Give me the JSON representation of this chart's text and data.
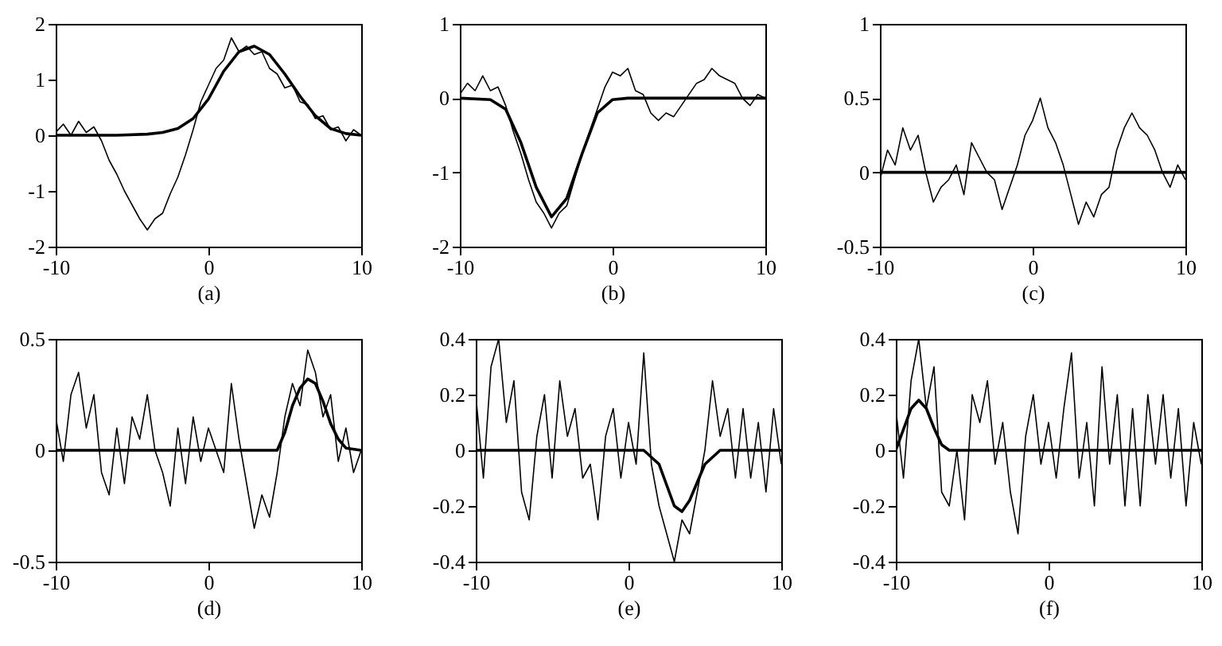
{
  "chart_data": [
    {
      "type": "line",
      "xlabel": "(a)",
      "xlim": [
        -10,
        10
      ],
      "xticks": [
        -10,
        0,
        10
      ],
      "ylim": [
        -2,
        2
      ],
      "yticks": [
        -2,
        -1,
        0,
        1,
        2
      ],
      "x": [
        -10,
        -9.5,
        -9,
        -8.5,
        -8,
        -7.5,
        -7,
        -6.5,
        -6,
        -5.5,
        -5,
        -4.5,
        -4,
        -3.5,
        -3,
        -2.5,
        -2,
        -1.5,
        -1,
        -0.5,
        0,
        0.5,
        1,
        1.5,
        2,
        2.5,
        3,
        3.5,
        4,
        4.5,
        5,
        5.5,
        6,
        6.5,
        7,
        7.5,
        8,
        8.5,
        9,
        9.5,
        10
      ],
      "series": [
        {
          "color": "#000000",
          "values": [
            0.05,
            0.2,
            0.0,
            0.25,
            0.05,
            0.15,
            -0.1,
            -0.45,
            -0.7,
            -1.0,
            -1.25,
            -1.5,
            -1.7,
            -1.5,
            -1.4,
            -1.05,
            -0.75,
            -0.35,
            0.1,
            0.6,
            0.9,
            1.2,
            1.35,
            1.75,
            1.5,
            1.6,
            1.45,
            1.5,
            1.2,
            1.1,
            0.85,
            0.9,
            0.6,
            0.55,
            0.3,
            0.35,
            0.1,
            0.15,
            -0.1,
            0.1,
            0.0
          ]
        },
        {
          "color": "#000000",
          "x": [
            -10,
            -6,
            -4,
            -3,
            -2,
            -1,
            0,
            1,
            2,
            3,
            4,
            5,
            6,
            7,
            8,
            9,
            10
          ],
          "values": [
            0,
            0,
            0.02,
            0.05,
            0.12,
            0.3,
            0.65,
            1.15,
            1.5,
            1.6,
            1.45,
            1.1,
            0.7,
            0.35,
            0.12,
            0.03,
            0
          ]
        }
      ]
    },
    {
      "type": "line",
      "xlabel": "(b)",
      "xlim": [
        -10,
        10
      ],
      "xticks": [
        -10,
        0,
        10
      ],
      "ylim": [
        -2,
        1
      ],
      "yticks": [
        -2,
        -1,
        0,
        1
      ],
      "x": [
        -10,
        -9.5,
        -9,
        -8.5,
        -8,
        -7.5,
        -7,
        -6.5,
        -6,
        -5.5,
        -5,
        -4.5,
        -4,
        -3.5,
        -3,
        -2.5,
        -2,
        -1.5,
        -1,
        -0.5,
        0,
        0.5,
        1,
        1.5,
        2,
        2.5,
        3,
        3.5,
        4,
        4.5,
        5,
        5.5,
        6,
        6.5,
        7,
        7.5,
        8,
        8.5,
        9,
        9.5,
        10
      ],
      "series": [
        {
          "color": "#000000",
          "values": [
            0.05,
            0.2,
            0.1,
            0.3,
            0.1,
            0.15,
            -0.1,
            -0.45,
            -0.75,
            -1.1,
            -1.4,
            -1.55,
            -1.75,
            -1.55,
            -1.45,
            -1.1,
            -0.75,
            -0.45,
            -0.15,
            0.15,
            0.35,
            0.3,
            0.4,
            0.1,
            0.05,
            -0.2,
            -0.3,
            -0.2,
            -0.25,
            -0.1,
            0.05,
            0.2,
            0.25,
            0.4,
            0.3,
            0.25,
            0.2,
            0.0,
            -0.1,
            0.05,
            0.0
          ]
        },
        {
          "color": "#000000",
          "x": [
            -10,
            -8,
            -7,
            -6,
            -5,
            -4,
            -3,
            -2,
            -1,
            0,
            1,
            10
          ],
          "values": [
            0,
            -0.02,
            -0.15,
            -0.6,
            -1.2,
            -1.6,
            -1.35,
            -0.75,
            -0.2,
            -0.02,
            0,
            0
          ]
        }
      ]
    },
    {
      "type": "line",
      "xlabel": "(c)",
      "xlim": [
        -10,
        10
      ],
      "xticks": [
        -10,
        0,
        10
      ],
      "ylim": [
        -0.5,
        1
      ],
      "yticks": [
        -0.5,
        0,
        0.5,
        1
      ],
      "x": [
        -10,
        -9.5,
        -9,
        -8.5,
        -8,
        -7.5,
        -7,
        -6.5,
        -6,
        -5.5,
        -5,
        -4.5,
        -4,
        -3.5,
        -3,
        -2.5,
        -2,
        -1.5,
        -1,
        -0.5,
        0,
        0.5,
        1,
        1.5,
        2,
        2.5,
        3,
        3.5,
        4,
        4.5,
        5,
        5.5,
        6,
        6.5,
        7,
        7.5,
        8,
        8.5,
        9,
        9.5,
        10
      ],
      "series": [
        {
          "color": "#000000",
          "values": [
            -0.05,
            0.15,
            0.05,
            0.3,
            0.15,
            0.25,
            0.0,
            -0.2,
            -0.1,
            -0.05,
            0.05,
            -0.15,
            0.2,
            0.1,
            0.0,
            -0.05,
            -0.25,
            -0.1,
            0.05,
            0.25,
            0.35,
            0.5,
            0.3,
            0.2,
            0.05,
            -0.15,
            -0.35,
            -0.2,
            -0.3,
            -0.15,
            -0.1,
            0.15,
            0.3,
            0.4,
            0.3,
            0.25,
            0.15,
            0.0,
            -0.1,
            0.05,
            -0.05
          ]
        },
        {
          "color": "#000000",
          "x": [
            -10,
            10
          ],
          "values": [
            0,
            0
          ]
        }
      ]
    },
    {
      "type": "line",
      "xlabel": "(d)",
      "xlim": [
        -10,
        10
      ],
      "xticks": [
        -10,
        0,
        10
      ],
      "ylim": [
        -0.5,
        0.5
      ],
      "yticks": [
        -0.5,
        0,
        0.5
      ],
      "x": [
        -10,
        -9.5,
        -9,
        -8.5,
        -8,
        -7.5,
        -7,
        -6.5,
        -6,
        -5.5,
        -5,
        -4.5,
        -4,
        -3.5,
        -3,
        -2.5,
        -2,
        -1.5,
        -1,
        -0.5,
        0,
        0.5,
        1,
        1.5,
        2,
        2.5,
        3,
        3.5,
        4,
        4.5,
        5,
        5.5,
        6,
        6.5,
        7,
        7.5,
        8,
        8.5,
        9,
        9.5,
        10
      ],
      "series": [
        {
          "color": "#000000",
          "values": [
            0.15,
            -0.05,
            0.25,
            0.35,
            0.1,
            0.25,
            -0.1,
            -0.2,
            0.1,
            -0.15,
            0.15,
            0.05,
            0.25,
            0.0,
            -0.1,
            -0.25,
            0.1,
            -0.15,
            0.15,
            -0.05,
            0.1,
            0.0,
            -0.1,
            0.3,
            0.05,
            -0.15,
            -0.35,
            -0.2,
            -0.3,
            -0.1,
            0.15,
            0.3,
            0.2,
            0.45,
            0.35,
            0.15,
            0.25,
            -0.05,
            0.1,
            -0.1,
            0.0
          ]
        },
        {
          "color": "#000000",
          "x": [
            -10,
            4.5,
            5,
            5.5,
            6,
            6.5,
            7,
            7.5,
            8,
            8.5,
            9,
            10
          ],
          "values": [
            0,
            0,
            0.08,
            0.2,
            0.28,
            0.32,
            0.3,
            0.22,
            0.12,
            0.05,
            0.01,
            0
          ]
        }
      ]
    },
    {
      "type": "line",
      "xlabel": "(e)",
      "xlim": [
        -10,
        10
      ],
      "xticks": [
        -10,
        0,
        10
      ],
      "ylim": [
        -0.4,
        0.4
      ],
      "yticks": [
        -0.4,
        -0.2,
        0,
        0.2,
        0.4
      ],
      "x": [
        -10,
        -9.5,
        -9,
        -8.5,
        -8,
        -7.5,
        -7,
        -6.5,
        -6,
        -5.5,
        -5,
        -4.5,
        -4,
        -3.5,
        -3,
        -2.5,
        -2,
        -1.5,
        -1,
        -0.5,
        0,
        0.5,
        1,
        1.5,
        2,
        2.5,
        3,
        3.5,
        4,
        4.5,
        5,
        5.5,
        6,
        6.5,
        7,
        7.5,
        8,
        8.5,
        9,
        9.5,
        10
      ],
      "series": [
        {
          "color": "#000000",
          "values": [
            0.2,
            -0.1,
            0.3,
            0.4,
            0.1,
            0.25,
            -0.15,
            -0.25,
            0.05,
            0.2,
            -0.1,
            0.25,
            0.05,
            0.15,
            -0.1,
            -0.05,
            -0.25,
            0.05,
            0.15,
            -0.1,
            0.1,
            -0.05,
            0.35,
            -0.05,
            -0.2,
            -0.3,
            -0.4,
            -0.25,
            -0.3,
            -0.15,
            0.0,
            0.25,
            0.05,
            0.15,
            -0.1,
            0.15,
            -0.1,
            0.1,
            -0.15,
            0.15,
            -0.05
          ]
        },
        {
          "color": "#000000",
          "x": [
            -10,
            1,
            2,
            3,
            3.5,
            4,
            5,
            6,
            10
          ],
          "values": [
            0,
            0,
            -0.05,
            -0.2,
            -0.22,
            -0.18,
            -0.05,
            0,
            0
          ]
        }
      ]
    },
    {
      "type": "line",
      "xlabel": "(f)",
      "xlim": [
        -10,
        10
      ],
      "xticks": [
        -10,
        0,
        10
      ],
      "ylim": [
        -0.4,
        0.4
      ],
      "yticks": [
        -0.4,
        -0.2,
        0,
        0.2,
        0.4
      ],
      "x": [
        -10,
        -9.5,
        -9,
        -8.5,
        -8,
        -7.5,
        -7,
        -6.5,
        -6,
        -5.5,
        -5,
        -4.5,
        -4,
        -3.5,
        -3,
        -2.5,
        -2,
        -1.5,
        -1,
        -0.5,
        0,
        0.5,
        1,
        1.5,
        2,
        2.5,
        3,
        3.5,
        4,
        4.5,
        5,
        5.5,
        6,
        6.5,
        7,
        7.5,
        8,
        8.5,
        9,
        9.5,
        10
      ],
      "series": [
        {
          "color": "#000000",
          "values": [
            0.15,
            -0.1,
            0.25,
            0.4,
            0.15,
            0.3,
            -0.15,
            -0.2,
            0.0,
            -0.25,
            0.2,
            0.1,
            0.25,
            -0.05,
            0.1,
            -0.15,
            -0.3,
            0.05,
            0.2,
            -0.05,
            0.1,
            -0.1,
            0.15,
            0.35,
            -0.1,
            0.1,
            -0.2,
            0.3,
            -0.05,
            0.2,
            -0.2,
            0.15,
            -0.2,
            0.2,
            -0.05,
            0.2,
            -0.1,
            0.15,
            -0.2,
            0.1,
            -0.05
          ]
        },
        {
          "color": "#000000",
          "x": [
            -10,
            -9,
            -8.5,
            -8,
            -7.5,
            -7,
            -6.5,
            10
          ],
          "values": [
            0,
            0.15,
            0.18,
            0.15,
            0.08,
            0.02,
            0,
            0
          ]
        }
      ]
    }
  ]
}
